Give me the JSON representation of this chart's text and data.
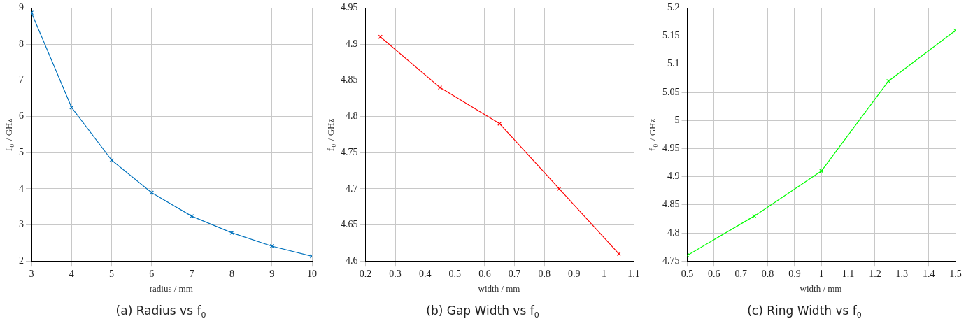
{
  "chart_data": [
    {
      "type": "line",
      "title": "(a) Radius vs f$_{0}$",
      "xlabel": "radius / mm",
      "ylabel": "f$_{0}$ / GHz",
      "x": [
        3,
        4,
        5,
        6,
        7,
        8,
        9,
        10
      ],
      "series": [
        {
          "color": "#0072bd",
          "values": [
            8.87,
            6.25,
            4.79,
            3.89,
            3.24,
            2.78,
            2.41,
            2.13
          ]
        }
      ],
      "xlim": [
        3,
        10
      ],
      "xticks": [
        3,
        4,
        5,
        6,
        7,
        8,
        9,
        10
      ],
      "ylim": [
        2,
        9
      ],
      "yticks": [
        2,
        3,
        4,
        5,
        6,
        7,
        8,
        9
      ],
      "grid": true,
      "legend": false,
      "marker": "cross",
      "line_style": "solid"
    },
    {
      "type": "line",
      "title": "(b) Gap Width vs f$_{0}$",
      "xlabel": "width / mm",
      "ylabel": "f$_{0}$ / GHz",
      "x": [
        0.25,
        0.45,
        0.65,
        0.85,
        1.05
      ],
      "series": [
        {
          "color": "#ff0000",
          "values": [
            4.91,
            4.84,
            4.79,
            4.7,
            4.61
          ]
        }
      ],
      "xlim": [
        0.2,
        1.1
      ],
      "xticks": [
        0.2,
        0.3,
        0.4,
        0.5,
        0.6,
        0.7,
        0.8,
        0.9,
        1,
        1.1
      ],
      "ylim": [
        4.6,
        4.95
      ],
      "yticks": [
        4.6,
        4.65,
        4.7,
        4.75,
        4.8,
        4.85,
        4.9,
        4.95
      ],
      "grid": true,
      "legend": false,
      "marker": "cross",
      "line_style": "solid"
    },
    {
      "type": "line",
      "title": "(c) Ring Width vs f$_{0}$",
      "xlabel": "width / mm",
      "ylabel": "f$_{0}$ / GHz",
      "x": [
        0.5,
        0.75,
        1,
        1.25,
        1.5
      ],
      "series": [
        {
          "color": "#00ff00",
          "values": [
            4.76,
            4.83,
            4.91,
            5.07,
            5.16
          ]
        }
      ],
      "xlim": [
        0.5,
        1.5
      ],
      "xticks": [
        0.5,
        0.6,
        0.7,
        0.8,
        0.9,
        1,
        1.1,
        1.2,
        1.3,
        1.4,
        1.5
      ],
      "ylim": [
        4.75,
        5.2
      ],
      "yticks": [
        4.75,
        4.8,
        4.85,
        4.9,
        4.95,
        5,
        5.05,
        5.1,
        5.15,
        5.2
      ],
      "grid": true,
      "legend": false,
      "marker": "cross",
      "line_style": "solid"
    }
  ]
}
